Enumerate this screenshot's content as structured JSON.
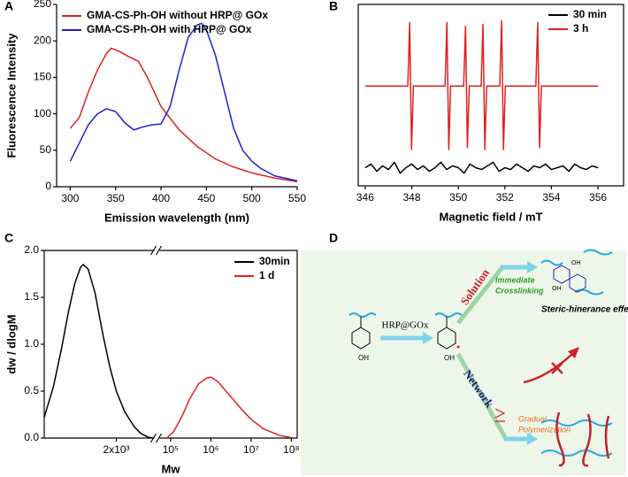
{
  "chart_data": [
    {
      "type": "line",
      "panel": "A",
      "xlabel": "Emission wavelength (nm)",
      "ylabel": "Fluorescence Intensity",
      "xlim": [
        285,
        550
      ],
      "xticks": [
        300,
        350,
        400,
        450,
        500,
        550
      ],
      "ylim": [
        0,
        250
      ],
      "yticks": [
        0,
        50,
        100,
        150,
        200,
        250
      ],
      "legend": "upper left",
      "series": [
        {
          "name": "GMA-CS-Ph-OH without HRP@ GOx",
          "color": "#e02020",
          "x": [
            300,
            310,
            320,
            330,
            340,
            345,
            355,
            365,
            375,
            385,
            400,
            420,
            440,
            460,
            480,
            500,
            525,
            550
          ],
          "values": [
            80,
            95,
            130,
            160,
            183,
            190,
            185,
            178,
            172,
            150,
            110,
            78,
            55,
            38,
            27,
            19,
            12,
            7
          ]
        },
        {
          "name": "GMA-CS-Ph-OH with HRP@ GOx",
          "color": "#1f1fd0",
          "x": [
            300,
            310,
            320,
            330,
            340,
            350,
            360,
            370,
            380,
            390,
            400,
            410,
            420,
            430,
            440,
            445,
            450,
            460,
            470,
            480,
            490,
            500,
            510,
            525,
            550
          ],
          "values": [
            35,
            60,
            85,
            100,
            107,
            103,
            88,
            78,
            82,
            85,
            86,
            110,
            160,
            205,
            222,
            224,
            215,
            180,
            130,
            80,
            50,
            35,
            25,
            15,
            8
          ]
        }
      ]
    },
    {
      "type": "line",
      "panel": "B",
      "xlabel": "Magnetic field / mT",
      "xlim": [
        345.7,
        357.1
      ],
      "xticks": [
        346,
        348,
        350,
        352,
        354,
        356
      ],
      "ylim": [
        0,
        100
      ],
      "legend": "upper right",
      "series": [
        {
          "name": "30 min",
          "color": "#000000",
          "x": [
            346,
            346.25,
            346.5,
            346.75,
            347,
            347.25,
            347.5,
            347.75,
            348,
            348.25,
            348.5,
            348.75,
            349,
            349.25,
            349.5,
            349.75,
            350,
            350.25,
            350.5,
            350.75,
            351,
            351.25,
            351.5,
            351.75,
            352,
            352.25,
            352.5,
            352.75,
            353,
            353.25,
            353.5,
            353.75,
            354,
            354.25,
            354.5,
            354.75,
            355,
            355.25,
            355.5,
            355.75,
            356
          ],
          "values": [
            10,
            12,
            8,
            11,
            9,
            13,
            7,
            10,
            12,
            9,
            11,
            8,
            10,
            13,
            9,
            11,
            10,
            7,
            12,
            10,
            9,
            11,
            13,
            8,
            10,
            9,
            12,
            10,
            8,
            11,
            10,
            12,
            9,
            10,
            11,
            8,
            12,
            10,
            9,
            11,
            10
          ]
        },
        {
          "name": "3 h",
          "color": "#e02020",
          "x": [
            346,
            347.83,
            347.91,
            347.99,
            348.07,
            349.43,
            349.51,
            349.59,
            349.67,
            350.23,
            350.31,
            350.39,
            350.47,
            350.98,
            351.06,
            351.14,
            351.22,
            351.78,
            351.86,
            351.94,
            352.02,
            353.33,
            353.41,
            353.49,
            353.57,
            356
          ],
          "values": [
            55,
            55,
            90,
            20,
            55,
            55,
            90,
            20,
            55,
            55,
            88,
            21,
            55,
            55,
            89,
            20,
            55,
            55,
            91,
            20,
            55,
            55,
            90,
            21,
            55,
            55
          ]
        }
      ]
    },
    {
      "type": "line",
      "panel": "C",
      "xlabel": "Mw",
      "ylabel": "dw / dlogM",
      "xscale": "log",
      "x_segments": [
        {
          "xlim": [
            600,
            3800
          ],
          "xticks": [
            {
              "value": 2000,
              "label": "2x10³"
            }
          ]
        },
        {
          "xlim": [
            52000,
            140000000
          ],
          "xticks": [
            {
              "value": 100000,
              "label": "10⁵"
            },
            {
              "value": 1000000,
              "label": "10⁶"
            },
            {
              "value": 10000000,
              "label": "10⁷"
            },
            {
              "value": 100000000,
              "label": "10⁸"
            }
          ]
        }
      ],
      "ylim": [
        0,
        2
      ],
      "yticks": [
        {
          "value": 0,
          "label": "0.0"
        },
        {
          "value": 0.5,
          "label": "0.5"
        },
        {
          "value": 1,
          "label": "1.0"
        },
        {
          "value": 1.5,
          "label": "1.5"
        },
        {
          "value": 2,
          "label": "2.0"
        }
      ],
      "legend": "upper right",
      "series": [
        {
          "name": "30min",
          "color": "#000000",
          "x": [
            600,
            700,
            800,
            900,
            1000,
            1100,
            1150,
            1250,
            1400,
            1600,
            1800,
            2000,
            2300,
            2700,
            3000,
            3400,
            3700
          ],
          "values": [
            0.22,
            0.55,
            0.95,
            1.35,
            1.65,
            1.82,
            1.85,
            1.8,
            1.55,
            1.1,
            0.75,
            0.5,
            0.28,
            0.12,
            0.05,
            0.01,
            0
          ]
        },
        {
          "name": "1 d",
          "color": "#e02020",
          "x": [
            80000,
            120000,
            200000,
            300000,
            500000,
            800000,
            1000000,
            1500000,
            3000000,
            6000000,
            10000000,
            20000000,
            50000000,
            100000000
          ],
          "values": [
            0,
            0.07,
            0.25,
            0.42,
            0.58,
            0.64,
            0.65,
            0.6,
            0.45,
            0.3,
            0.2,
            0.1,
            0.03,
            0.005
          ]
        }
      ]
    }
  ],
  "diagram": {
    "panel": "D",
    "enzyme": "HRP@GOx",
    "oh": "OH",
    "route_1": "Solution",
    "route_2": "Network",
    "result_1": [
      "Immediate",
      "Crosslinking"
    ],
    "effect": "Steric-hinerance effect",
    "result_2": [
      "Gradual",
      "Polymerization"
    ]
  }
}
